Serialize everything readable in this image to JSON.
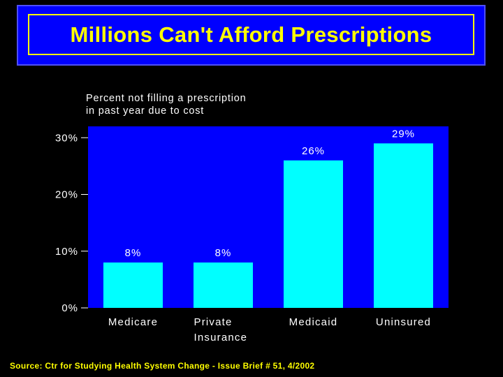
{
  "title": "Millions Can't Afford Prescriptions",
  "source": "Source: Ctr for Studying Health System Change - Issue Brief # 51, 4/2002",
  "colors": {
    "background": "#000000",
    "title_bg": "#0000ff",
    "title_text": "#ffff00",
    "plot_bg": "#0000ff",
    "bars": "#00ffff",
    "labels": "#ffffff"
  },
  "chart_data": {
    "type": "bar",
    "title": "Percent not filling a prescription in past year due to cost",
    "title_lines": [
      "Percent not filling a prescription",
      "in past year due to cost"
    ],
    "categories": [
      "Medicare",
      "Private Insurance",
      "Medicaid",
      "Uninsured"
    ],
    "category_lines": [
      [
        "Medicare"
      ],
      [
        "Private",
        "Insurance"
      ],
      [
        "Medicaid"
      ],
      [
        "Uninsured"
      ]
    ],
    "values": [
      8,
      8,
      26,
      29
    ],
    "data_labels": [
      "8%",
      "8%",
      "26%",
      "29%"
    ],
    "xlabel": "",
    "ylabel": "",
    "ylim": [
      0,
      32
    ],
    "yticks": [
      0,
      10,
      20,
      30
    ],
    "ytick_labels": [
      "0%",
      "10%",
      "20%",
      "30%"
    ],
    "grid": false
  }
}
